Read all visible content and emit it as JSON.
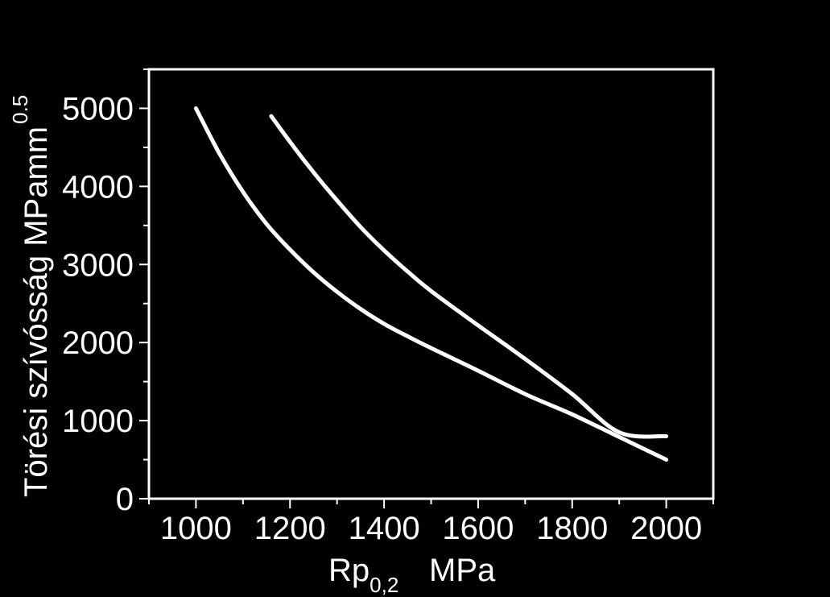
{
  "chart_data": {
    "type": "line",
    "background": "#000000",
    "foreground": "#ffffff",
    "title": "",
    "xlabel": {
      "main": "Rp",
      "sub": "0,2",
      "unit": "MPa"
    },
    "ylabel": {
      "main": "Törési szívósság MPamm",
      "sup": "0.5"
    },
    "xlim": [
      900,
      2100
    ],
    "ylim": [
      0,
      5500
    ],
    "xticks": [
      1000,
      1200,
      1400,
      1600,
      1800,
      2000
    ],
    "yticks": [
      0,
      1000,
      2000,
      3000,
      4000,
      5000
    ],
    "x_minor_step": 100,
    "y_minor_step": 500,
    "grid": false,
    "legend": "none",
    "series": [
      {
        "color": "#ffffff",
        "x": [
          1000,
          1050,
          1100,
          1150,
          1200,
          1250,
          1300,
          1350,
          1400,
          1450,
          1500,
          1600,
          1700,
          1800,
          1900,
          2000
        ],
        "y": [
          5000,
          4420,
          3930,
          3520,
          3190,
          2900,
          2650,
          2430,
          2240,
          2080,
          1930,
          1640,
          1340,
          1080,
          790,
          500
        ]
      },
      {
        "color": "#ffffff",
        "x": [
          1160,
          1200,
          1250,
          1300,
          1350,
          1400,
          1450,
          1500,
          1600,
          1700,
          1800,
          1900,
          2000
        ],
        "y": [
          4900,
          4570,
          4180,
          3820,
          3480,
          3180,
          2910,
          2660,
          2220,
          1790,
          1340,
          850,
          800
        ]
      }
    ]
  }
}
